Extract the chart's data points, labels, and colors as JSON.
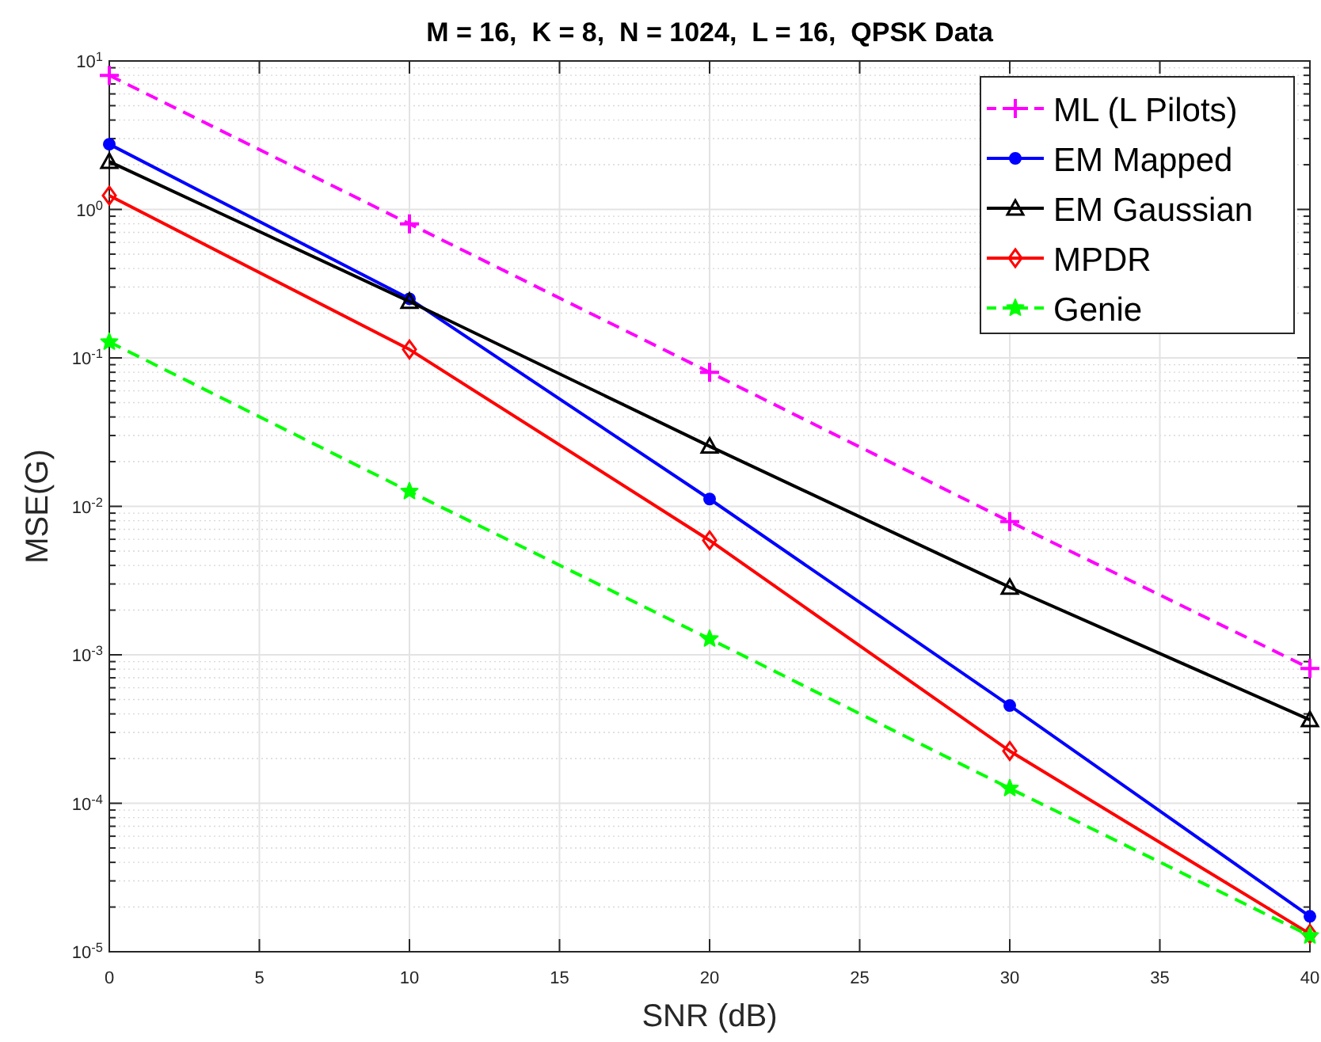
{
  "chart_data": {
    "type": "line",
    "title": "M = 16,  K = 8,  N = 1024,  L = 16,  QPSK Data",
    "xlabel": "SNR (dB)",
    "ylabel": "MSE(G)",
    "x": [
      0,
      10,
      20,
      30,
      40
    ],
    "series": [
      {
        "name": "ML (L Pilots)",
        "color": "#ff00ff",
        "marker": "cross",
        "line_style": "dashed",
        "values": [
          8,
          0.8,
          0.08,
          0.0079,
          0.00081
        ]
      },
      {
        "name": "EM Mapped",
        "color": "#0000ff",
        "marker": "circle",
        "line_style": "solid",
        "values": [
          2.75,
          0.25,
          0.0112,
          0.000455,
          1.73e-05
        ]
      },
      {
        "name": "EM Gaussian",
        "color": "#000000",
        "marker": "triangle",
        "line_style": "solid",
        "values": [
          2.1,
          0.24,
          0.0254,
          0.00285,
          0.000365
        ]
      },
      {
        "name": "MPDR",
        "color": "#ff0000",
        "marker": "diamond",
        "line_style": "solid",
        "values": [
          1.24,
          0.114,
          0.0059,
          0.000225,
          1.32e-05
        ]
      },
      {
        "name": "Genie",
        "color": "#00ff00",
        "marker": "star",
        "line_style": "dashed",
        "values": [
          0.128,
          0.0126,
          0.00128,
          0.000126,
          1.28e-05
        ]
      }
    ],
    "xlim": [
      0,
      40
    ],
    "xticks": [
      0,
      5,
      10,
      15,
      20,
      25,
      30,
      35,
      40
    ],
    "ylim": [
      1e-05,
      10
    ],
    "yticks": [
      {
        "value": 1e-05,
        "label": "10$^{-5}$"
      },
      {
        "value": 0.0001,
        "label": "10$^{-4}$"
      },
      {
        "value": 0.001,
        "label": "10$^{-3}$"
      },
      {
        "value": 0.01,
        "label": "10$^{-2}$"
      },
      {
        "value": 0.1,
        "label": "10$^{-1}$"
      },
      {
        "value": 1,
        "label": "10$^{0}$"
      },
      {
        "value": 10,
        "label": "10$^{1}$"
      }
    ],
    "log": "y",
    "grid": true,
    "legend": "top right"
  }
}
